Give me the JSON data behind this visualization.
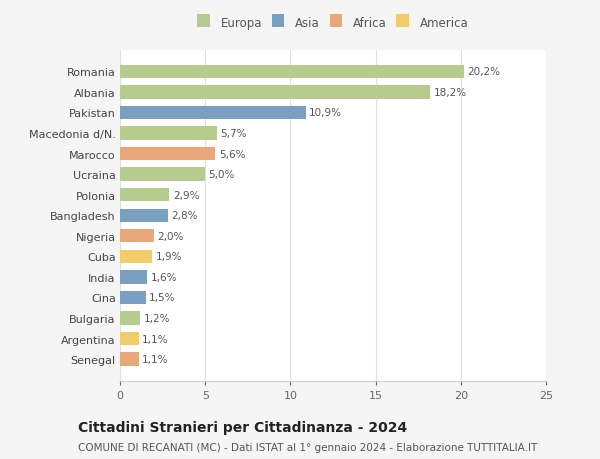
{
  "categories": [
    "Senegal",
    "Argentina",
    "Bulgaria",
    "Cina",
    "India",
    "Cuba",
    "Nigeria",
    "Bangladesh",
    "Polonia",
    "Ucraina",
    "Marocco",
    "Macedonia d/N.",
    "Pakistan",
    "Albania",
    "Romania"
  ],
  "values": [
    1.1,
    1.1,
    1.2,
    1.5,
    1.6,
    1.9,
    2.0,
    2.8,
    2.9,
    5.0,
    5.6,
    5.7,
    10.9,
    18.2,
    20.2
  ],
  "continents": [
    "Africa",
    "America",
    "Europa",
    "Asia",
    "Asia",
    "America",
    "Africa",
    "Asia",
    "Europa",
    "Europa",
    "Africa",
    "Europa",
    "Asia",
    "Europa",
    "Europa"
  ],
  "labels": [
    "1,1%",
    "1,1%",
    "1,2%",
    "1,5%",
    "1,6%",
    "1,9%",
    "2,0%",
    "2,8%",
    "2,9%",
    "5,0%",
    "5,6%",
    "5,7%",
    "10,9%",
    "18,2%",
    "20,2%"
  ],
  "continent_colors": {
    "Europa": "#b5cc8e",
    "Asia": "#7a9fc0",
    "Africa": "#e8a87c",
    "America": "#f0cc6a"
  },
  "legend_order": [
    "Europa",
    "Asia",
    "Africa",
    "America"
  ],
  "title": "Cittadini Stranieri per Cittadinanza - 2024",
  "subtitle": "COMUNE DI RECANATI (MC) - Dati ISTAT al 1° gennaio 2024 - Elaborazione TUTTITALIA.IT",
  "xlim": [
    0,
    25
  ],
  "xticks": [
    0,
    5,
    10,
    15,
    20,
    25
  ],
  "background_color": "#f5f5f5",
  "plot_bg_color": "#ffffff",
  "grid_color": "#e0e0e0",
  "title_fontsize": 10,
  "subtitle_fontsize": 7.5,
  "label_fontsize": 7.5,
  "tick_fontsize": 8,
  "legend_fontsize": 8.5,
  "bar_height": 0.65
}
